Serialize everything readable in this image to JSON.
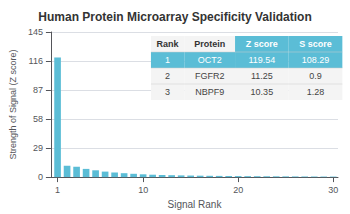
{
  "chart_data": {
    "type": "bar",
    "title": "Human Protein Microarray Specificity Validation",
    "xlabel": "Signal Rank",
    "ylabel": "Strength of Signal (Z score)",
    "x": [
      1,
      2,
      3,
      4,
      5,
      6,
      7,
      8,
      9,
      10,
      11,
      12,
      13,
      14,
      15,
      16,
      17,
      18,
      19,
      20,
      21,
      22,
      23,
      24,
      25,
      26,
      27,
      28,
      29,
      30
    ],
    "values": [
      119.54,
      11.25,
      10.35,
      8.2,
      6.8,
      5.5,
      4.6,
      3.9,
      3.3,
      2.8,
      2.4,
      2.1,
      1.9,
      1.7,
      1.55,
      1.42,
      1.3,
      1.2,
      1.1,
      1.02,
      0.95,
      0.88,
      0.82,
      0.77,
      0.72,
      0.67,
      0.63,
      0.59,
      0.55,
      0.52
    ],
    "color": "#5bbdd6",
    "xlim": [
      0.3,
      30.5
    ],
    "xticks": [
      1,
      10,
      20,
      30
    ],
    "ylim": [
      0,
      145
    ],
    "yticks": [
      0,
      29,
      58,
      87,
      116,
      145
    ],
    "grid": true,
    "table": {
      "headers": [
        "Rank",
        "Protein",
        "Z score",
        "S score"
      ],
      "rows": [
        [
          "1",
          "OCT2",
          "119.54",
          "108.29"
        ],
        [
          "2",
          "FGFR2",
          "11.25",
          "0.9"
        ],
        [
          "3",
          "NBPF9",
          "10.35",
          "1.28"
        ]
      ]
    }
  }
}
